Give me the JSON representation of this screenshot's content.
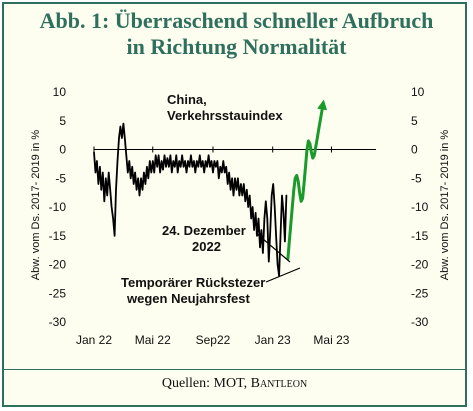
{
  "header": {
    "title_line1": "Abb. 1: Überraschend schneller Aufbruch",
    "title_line2": "in Richtung Normalität"
  },
  "footer": {
    "source_prefix": "Quellen: MOT, ",
    "source_brand": "Bantleon"
  },
  "colors": {
    "accent": "#2f6f5d",
    "frame_bg": "#fdfdf0",
    "actual_line": "#000000",
    "forecast_line": "#1a9a2a"
  },
  "chart_data": {
    "type": "line",
    "ylabel_left": "Abw. vom Ds. 2017- 2019 in %",
    "ylabel_right": "Abw. vom Ds. 2017- 2019 in %",
    "ylim": [
      -30,
      10
    ],
    "yticks": [
      10,
      5,
      0,
      -5,
      -10,
      -15,
      -20,
      -25,
      -30
    ],
    "xlim": [
      "2022-01-01",
      "2023-07-31"
    ],
    "xticks": [
      {
        "label": "Jan 22",
        "date": "2022-01-01"
      },
      {
        "label": "Mai 22",
        "date": "2022-05-01"
      },
      {
        "label": "Sep22",
        "date": "2022-09-01"
      },
      {
        "label": "Jan 23",
        "date": "2023-01-01"
      },
      {
        "label": "Mai 23",
        "date": "2023-05-01"
      }
    ],
    "grid": false,
    "zero_line": true,
    "annotations": {
      "series_label_line1": "China,",
      "series_label_line2": "Verkehrsstauindex",
      "dec_label_line1": "24. Dezember",
      "dec_label_line2": "2022",
      "setback_line1": "Temporärer Rückstezer",
      "setback_line2": "wegen Neujahrsfest"
    },
    "series": [
      {
        "style": "actual",
        "points": [
          [
            "2022-01-01",
            -0.5
          ],
          [
            "2022-01-04",
            -4
          ],
          [
            "2022-01-07",
            -2
          ],
          [
            "2022-01-10",
            -6
          ],
          [
            "2022-01-13",
            -3
          ],
          [
            "2022-01-16",
            -7
          ],
          [
            "2022-01-19",
            -4
          ],
          [
            "2022-01-22",
            -9
          ],
          [
            "2022-01-25",
            -5
          ],
          [
            "2022-01-28",
            -8
          ],
          [
            "2022-01-31",
            -4
          ],
          [
            "2022-02-03",
            -7
          ],
          [
            "2022-02-06",
            -10
          ],
          [
            "2022-02-09",
            -12
          ],
          [
            "2022-02-12",
            -15
          ],
          [
            "2022-02-15",
            -7
          ],
          [
            "2022-02-18",
            -2
          ],
          [
            "2022-02-21",
            2
          ],
          [
            "2022-02-24",
            4
          ],
          [
            "2022-02-27",
            2
          ],
          [
            "2022-03-02",
            4.5
          ],
          [
            "2022-03-05",
            2
          ],
          [
            "2022-03-08",
            -1
          ],
          [
            "2022-03-11",
            -4
          ],
          [
            "2022-03-14",
            -2
          ],
          [
            "2022-03-17",
            -5
          ],
          [
            "2022-03-20",
            -3
          ],
          [
            "2022-03-23",
            -6
          ],
          [
            "2022-03-26",
            -4
          ],
          [
            "2022-03-29",
            -7
          ],
          [
            "2022-04-01",
            -5
          ],
          [
            "2022-04-04",
            -8
          ],
          [
            "2022-04-07",
            -5
          ],
          [
            "2022-04-10",
            -7
          ],
          [
            "2022-04-13",
            -4
          ],
          [
            "2022-04-16",
            -6
          ],
          [
            "2022-04-19",
            -3
          ],
          [
            "2022-04-22",
            -5
          ],
          [
            "2022-04-25",
            -2
          ],
          [
            "2022-04-28",
            -4
          ],
          [
            "2022-05-01",
            -2
          ],
          [
            "2022-05-04",
            -4
          ],
          [
            "2022-05-07",
            -1
          ],
          [
            "2022-05-10",
            -3
          ],
          [
            "2022-05-13",
            -1
          ],
          [
            "2022-05-16",
            -4
          ],
          [
            "2022-05-19",
            -2
          ],
          [
            "2022-05-22",
            -3.5
          ],
          [
            "2022-05-25",
            -1
          ],
          [
            "2022-05-28",
            -3
          ],
          [
            "2022-05-31",
            -1.5
          ],
          [
            "2022-06-03",
            -3
          ],
          [
            "2022-06-06",
            -1
          ],
          [
            "2022-06-09",
            -4
          ],
          [
            "2022-06-12",
            -2
          ],
          [
            "2022-06-15",
            -3
          ],
          [
            "2022-06-18",
            -1
          ],
          [
            "2022-06-21",
            -4
          ],
          [
            "2022-06-24",
            -2
          ],
          [
            "2022-06-27",
            -3
          ],
          [
            "2022-06-30",
            -1
          ],
          [
            "2022-07-03",
            -3
          ],
          [
            "2022-07-06",
            -2
          ],
          [
            "2022-07-09",
            -4
          ],
          [
            "2022-07-12",
            -2
          ],
          [
            "2022-07-15",
            -3
          ],
          [
            "2022-07-18",
            -1
          ],
          [
            "2022-07-21",
            -3
          ],
          [
            "2022-07-24",
            -2
          ],
          [
            "2022-07-27",
            -4
          ],
          [
            "2022-07-30",
            -2
          ],
          [
            "2022-08-02",
            -3
          ],
          [
            "2022-08-05",
            -1
          ],
          [
            "2022-08-08",
            -3
          ],
          [
            "2022-08-11",
            -2
          ],
          [
            "2022-08-14",
            -4
          ],
          [
            "2022-08-17",
            -2
          ],
          [
            "2022-08-20",
            -3
          ],
          [
            "2022-08-23",
            -1
          ],
          [
            "2022-08-26",
            -3
          ],
          [
            "2022-08-29",
            -2
          ],
          [
            "2022-09-01",
            -4
          ],
          [
            "2022-09-04",
            -2
          ],
          [
            "2022-09-07",
            -3
          ],
          [
            "2022-09-10",
            -2
          ],
          [
            "2022-09-13",
            -5
          ],
          [
            "2022-09-16",
            -3
          ],
          [
            "2022-09-19",
            -4
          ],
          [
            "2022-09-22",
            -2
          ],
          [
            "2022-09-25",
            -4
          ],
          [
            "2022-09-28",
            -3
          ],
          [
            "2022-10-01",
            -6
          ],
          [
            "2022-10-04",
            -4
          ],
          [
            "2022-10-07",
            -7
          ],
          [
            "2022-10-10",
            -5
          ],
          [
            "2022-10-13",
            -8
          ],
          [
            "2022-10-16",
            -5
          ],
          [
            "2022-10-19",
            -7
          ],
          [
            "2022-10-22",
            -5
          ],
          [
            "2022-10-25",
            -8
          ],
          [
            "2022-10-28",
            -6
          ],
          [
            "2022-10-31",
            -8
          ],
          [
            "2022-11-03",
            -6
          ],
          [
            "2022-11-06",
            -9
          ],
          [
            "2022-11-09",
            -7
          ],
          [
            "2022-11-12",
            -10
          ],
          [
            "2022-11-15",
            -8
          ],
          [
            "2022-11-18",
            -12
          ],
          [
            "2022-11-21",
            -10
          ],
          [
            "2022-11-24",
            -14
          ],
          [
            "2022-11-27",
            -11
          ],
          [
            "2022-11-30",
            -15
          ],
          [
            "2022-12-03",
            -12
          ],
          [
            "2022-12-06",
            -17
          ],
          [
            "2022-12-09",
            -14
          ],
          [
            "2022-12-12",
            -18
          ],
          [
            "2022-12-15",
            -12
          ],
          [
            "2022-12-18",
            -9
          ],
          [
            "2022-12-21",
            -12
          ],
          [
            "2022-12-24",
            -19.5
          ],
          [
            "2022-12-27",
            -14
          ],
          [
            "2022-12-30",
            -8
          ],
          [
            "2023-01-02",
            -6
          ],
          [
            "2023-01-05",
            -10
          ],
          [
            "2023-01-08",
            -15
          ],
          [
            "2023-01-11",
            -20
          ],
          [
            "2023-01-14",
            -22
          ],
          [
            "2023-01-17",
            -15
          ],
          [
            "2023-01-20",
            -8
          ],
          [
            "2023-01-23",
            -11
          ],
          [
            "2023-01-26",
            -16
          ],
          [
            "2023-01-29",
            -8
          ]
        ]
      },
      {
        "style": "forecast",
        "points": [
          [
            "2023-02-01",
            -19
          ],
          [
            "2023-02-04",
            -16
          ],
          [
            "2023-02-07",
            -13
          ],
          [
            "2023-02-10",
            -10
          ],
          [
            "2023-02-13",
            -7
          ],
          [
            "2023-02-16",
            -5
          ],
          [
            "2023-02-19",
            -4.5
          ],
          [
            "2023-02-22",
            -5.5
          ],
          [
            "2023-02-25",
            -7.5
          ],
          [
            "2023-02-28",
            -9
          ],
          [
            "2023-03-03",
            -8.5
          ],
          [
            "2023-03-06",
            -6
          ],
          [
            "2023-03-09",
            -3
          ],
          [
            "2023-03-12",
            0
          ],
          [
            "2023-03-15",
            1.5
          ],
          [
            "2023-03-18",
            1
          ],
          [
            "2023-03-21",
            -0.5
          ],
          [
            "2023-03-24",
            -1.5
          ],
          [
            "2023-03-27",
            -1
          ],
          [
            "2023-03-30",
            0.5
          ],
          [
            "2023-04-02",
            2
          ],
          [
            "2023-04-05",
            3.5
          ],
          [
            "2023-04-08",
            5
          ],
          [
            "2023-04-11",
            6.5
          ],
          [
            "2023-04-14",
            8
          ]
        ]
      }
    ]
  }
}
